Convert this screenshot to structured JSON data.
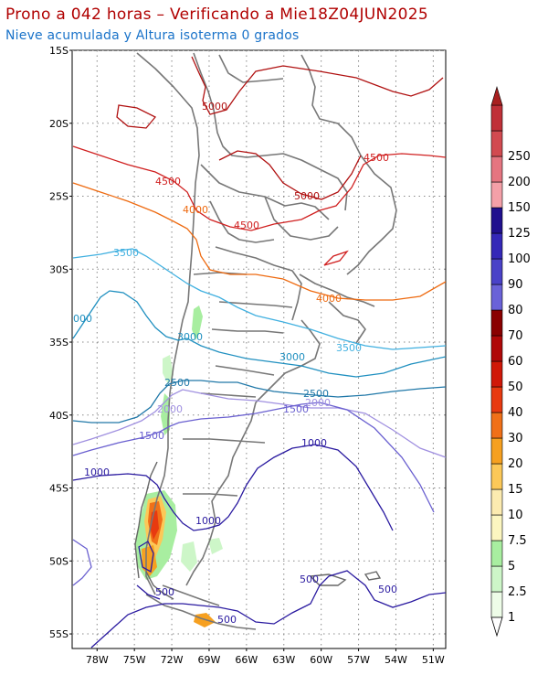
{
  "header": {
    "title": "Prono a 042 horas – Verificando a Mie18Z04JUN2025",
    "subtitle": "Nieve acumulada y Altura isoterma 0 grados"
  },
  "map": {
    "lat_labels": [
      "15S",
      "20S",
      "25S",
      "30S",
      "35S",
      "40S",
      "45S",
      "50S",
      "55S"
    ],
    "lon_labels": [
      "78W",
      "75W",
      "72W",
      "69W",
      "66W",
      "63W",
      "60W",
      "57W",
      "54W",
      "51W"
    ],
    "lon_range": [
      -80,
      -50
    ],
    "lat_range": [
      -15,
      -56
    ],
    "contour_labels": [
      {
        "text": "5000",
        "color": "#b01010"
      },
      {
        "text": "5000",
        "color": "#b01010"
      },
      {
        "text": "4500",
        "color": "#d02020"
      },
      {
        "text": "4500",
        "color": "#d02020"
      },
      {
        "text": "4500",
        "color": "#d02020"
      },
      {
        "text": "4000",
        "color": "#ee6a10"
      },
      {
        "text": "4000",
        "color": "#ee6a10"
      },
      {
        "text": "3500",
        "color": "#40b0e0"
      },
      {
        "text": "3500",
        "color": "#40b0e0"
      },
      {
        "text": "3000",
        "color": "#2090c0"
      },
      {
        "text": "3000",
        "color": "#2090c0"
      },
      {
        "text": "2500",
        "color": "#2078a8"
      },
      {
        "text": "2500",
        "color": "#2078a8"
      },
      {
        "text": "2000",
        "color": "#a090e0"
      },
      {
        "text": "2000",
        "color": "#a090e0"
      },
      {
        "text": "1500",
        "color": "#6a60d0"
      },
      {
        "text": "1500",
        "color": "#6a60d0"
      },
      {
        "text": "1000",
        "color": "#2a1aa0"
      },
      {
        "text": "1000",
        "color": "#2a1aa0"
      },
      {
        "text": "1000",
        "color": "#2a1aa0"
      },
      {
        "text": "500",
        "color": "#2a1aa0"
      },
      {
        "text": "500",
        "color": "#2a1aa0"
      },
      {
        "text": "500",
        "color": "#2a1aa0"
      },
      {
        "text": "500",
        "color": "#2a1aa0"
      },
      {
        "text": "000",
        "color": "#2090c0"
      }
    ]
  },
  "colorbar": {
    "levels": [
      "1",
      "2.5",
      "5",
      "7.5",
      "10",
      "15",
      "20",
      "30",
      "40",
      "50",
      "60",
      "70",
      "80",
      "90",
      "100",
      "125",
      "150",
      "200",
      "250"
    ],
    "colors": [
      "#eefde8",
      "#cdf6c8",
      "#a8eea0",
      "#fcf6c0",
      "#fcebb0",
      "#fcc858",
      "#f6a020",
      "#f07018",
      "#e83a10",
      "#d01808",
      "#b00808",
      "#8a0000",
      "#6a62d8",
      "#4a42c8",
      "#3428b8",
      "#20108e",
      "#f4a0a8",
      "#e57580",
      "#d24a50",
      "#c03038"
    ],
    "top_color": "#a82020"
  }
}
